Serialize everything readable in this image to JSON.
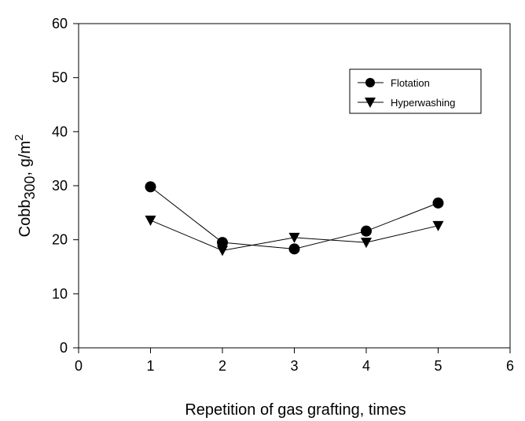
{
  "chart_data": {
    "type": "line",
    "xlabel": "Repetition of gas grafting, times",
    "ylabel": {
      "main": "Cobb",
      "subscript": "300",
      "unit": ", g/m",
      "superscript": "2"
    },
    "xlim": [
      0,
      6
    ],
    "ylim": [
      0,
      60
    ],
    "xticks": [
      "0",
      "1",
      "2",
      "3",
      "4",
      "5",
      "6"
    ],
    "yticks": [
      "0",
      "10",
      "20",
      "30",
      "40",
      "50",
      "60"
    ],
    "grid": false,
    "legend_position": "top-right",
    "series": [
      {
        "name": "Flotation",
        "marker": "circle",
        "x": [
          1,
          2,
          3,
          4,
          5
        ],
        "values": [
          29.8,
          19.5,
          18.3,
          21.6,
          26.8
        ]
      },
      {
        "name": "Hyperwashing",
        "marker": "triangle-down",
        "x": [
          1,
          2,
          3,
          4,
          5
        ],
        "values": [
          23.6,
          18.0,
          20.4,
          19.5,
          22.6
        ]
      }
    ],
    "colors": {
      "line": "#000000",
      "marker": "#000000"
    }
  }
}
